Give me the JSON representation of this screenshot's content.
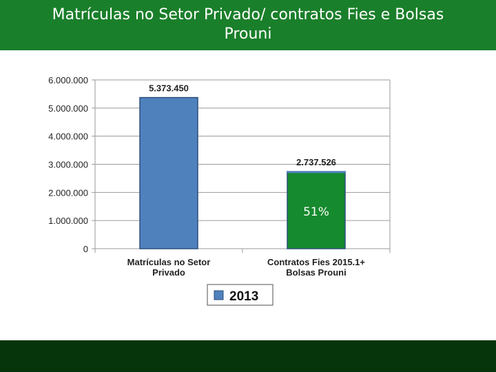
{
  "header": {
    "title_line1": "Matrículas no Setor Privado/ contratos Fies e Bolsas",
    "title_line2": "Prouni"
  },
  "colors": {
    "header_bg": "#1a7f2a",
    "footer_bg": "#06350c",
    "bar_series": "#4f81bd",
    "bar_highlight": "#168a2e"
  },
  "chart_data": {
    "type": "bar",
    "categories": [
      [
        "Matrículas no Setor",
        "Privado"
      ],
      [
        "Contratos Fies 2015.1+",
        "Bolsas Prouni"
      ]
    ],
    "series": [
      {
        "name": "2013",
        "values": [
          5373450,
          2737526
        ]
      }
    ],
    "data_labels": [
      "5.373.450",
      "2.737.526"
    ],
    "yticks": [
      "0",
      "1.000.000",
      "2.000.000",
      "3.000.000",
      "4.000.000",
      "5.000.000",
      "6.000.000"
    ],
    "ylim": [
      0,
      6000000
    ],
    "annotation": {
      "category_index": 1,
      "text": "51%"
    },
    "grid": true,
    "legend": "bottom",
    "title": "",
    "xlabel": "",
    "ylabel": ""
  }
}
